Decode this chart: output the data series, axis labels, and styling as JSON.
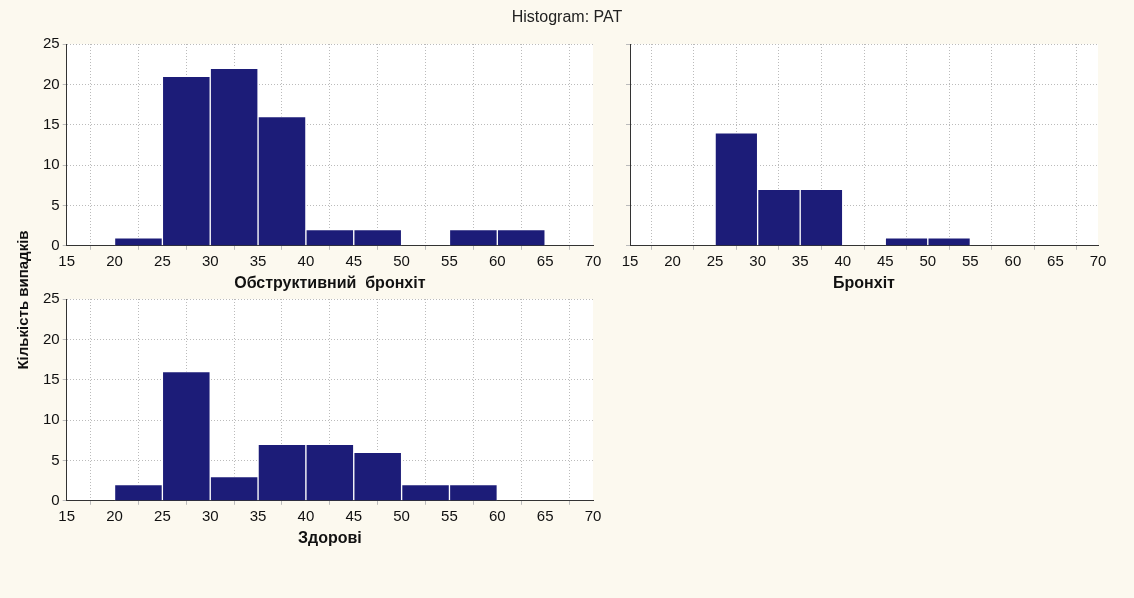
{
  "chart_data": [
    {
      "type": "histogram",
      "title": "Histogram: PAT",
      "ylabel": "Кількість випадків",
      "xlabel": "Обструктивний  бронхіт",
      "bins": [
        15,
        20,
        25,
        30,
        35,
        40,
        45,
        50,
        55,
        60,
        65,
        70
      ],
      "values": [
        0,
        1,
        21,
        22,
        16,
        2,
        2,
        0,
        2,
        2,
        0
      ],
      "color": "#1c1c78",
      "xlim": [
        15,
        70
      ],
      "xticks": [
        15,
        20,
        25,
        30,
        35,
        40,
        45,
        50,
        55,
        60,
        65,
        70
      ],
      "ylim": [
        0,
        25
      ],
      "yticks": [
        0,
        5,
        10,
        15,
        20,
        25
      ],
      "grid": true,
      "legend": false
    },
    {
      "type": "histogram",
      "xlabel": "Бронхіт",
      "bins": [
        15,
        20,
        25,
        30,
        35,
        40,
        45,
        50,
        55,
        60,
        65,
        70
      ],
      "values": [
        0,
        0,
        14,
        7,
        7,
        0,
        1,
        1,
        0,
        0,
        0
      ],
      "color": "#1c1c78",
      "xlim": [
        15,
        70
      ],
      "xticks": [
        15,
        20,
        25,
        30,
        35,
        40,
        45,
        50,
        55,
        60,
        65,
        70
      ],
      "ylim": [
        0,
        25
      ],
      "yticks": [
        0,
        5,
        10,
        15,
        20,
        25
      ],
      "grid": true,
      "legend": false,
      "tick_labels": "x"
    },
    {
      "type": "histogram",
      "xlabel": "Здорові",
      "bins": [
        15,
        20,
        25,
        30,
        35,
        40,
        45,
        50,
        55,
        60,
        65,
        70
      ],
      "values": [
        0,
        2,
        16,
        3,
        7,
        7,
        6,
        2,
        2,
        0,
        0
      ],
      "color": "#1c1c78",
      "xlim": [
        15,
        70
      ],
      "xticks": [
        15,
        20,
        25,
        30,
        35,
        40,
        45,
        50,
        55,
        60,
        65,
        70
      ],
      "ylim": [
        0,
        25
      ],
      "yticks": [
        0,
        5,
        10,
        15,
        20,
        25
      ],
      "grid": true,
      "legend": false
    }
  ]
}
